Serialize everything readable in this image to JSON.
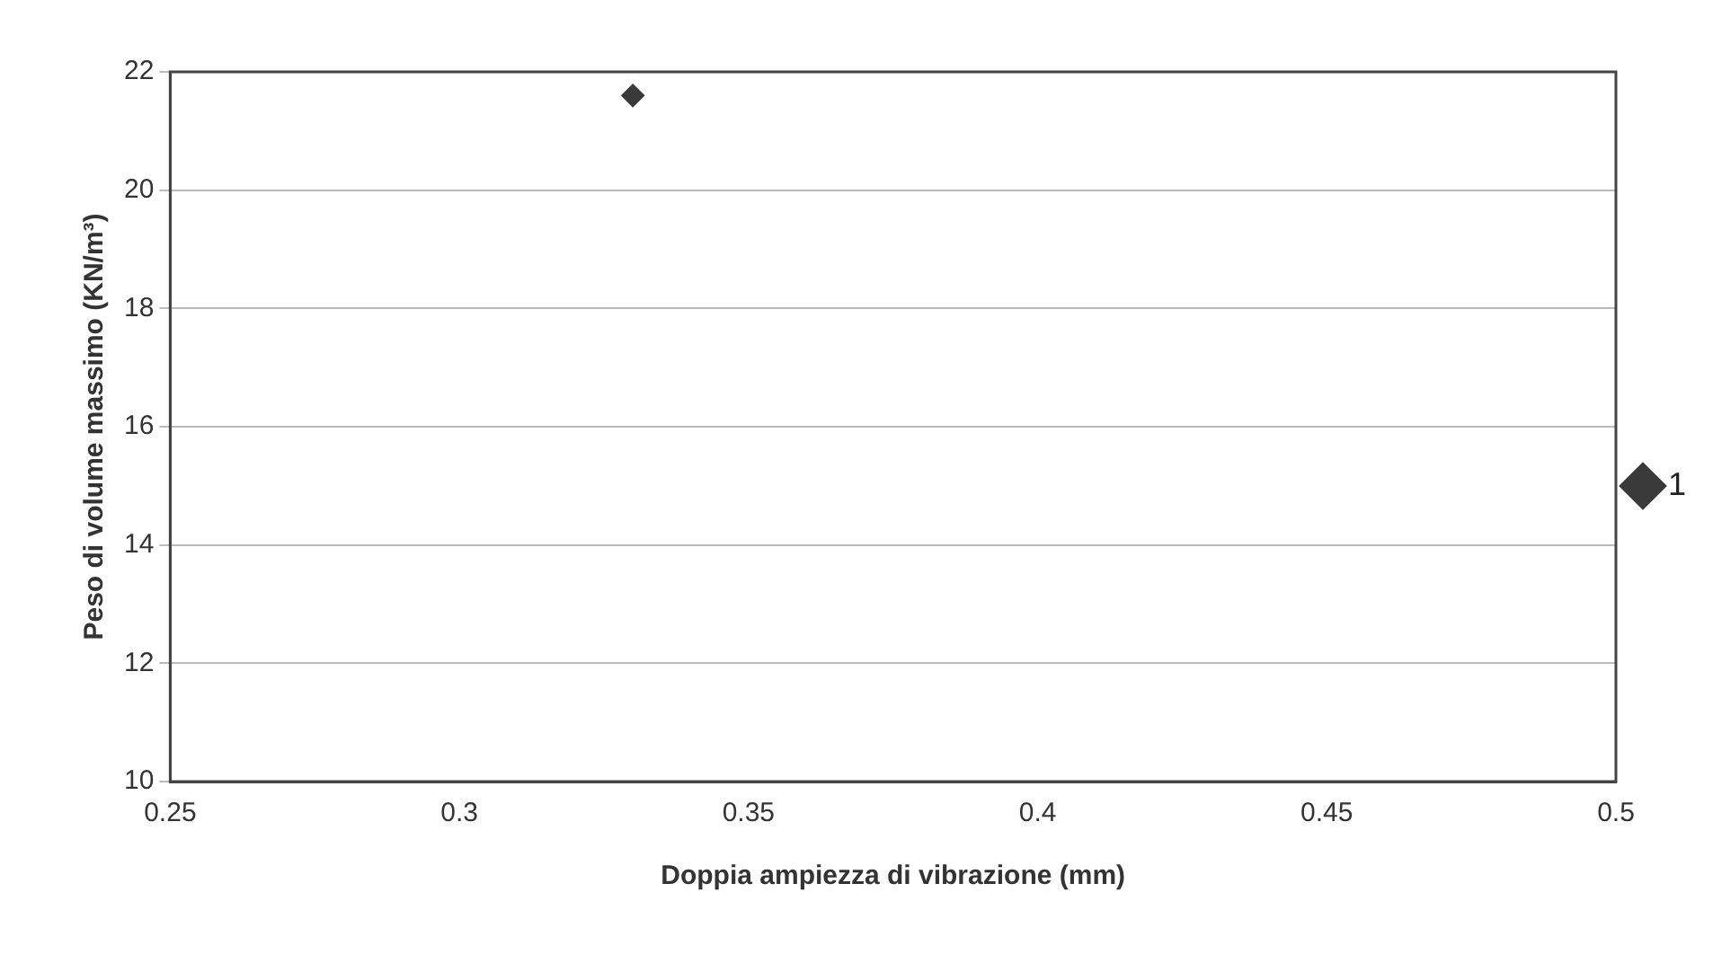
{
  "chart_data": {
    "type": "scatter",
    "xlabel": "Doppia ampiezza di vibrazione (mm)",
    "ylabel": "Peso di volume massimo (KN/m³)",
    "series": [
      {
        "name": "1",
        "color": "#3a3a3a",
        "x": [
          0.33
        ],
        "values": [
          21.6
        ]
      }
    ],
    "xlim": [
      0.25,
      0.5
    ],
    "xticks": [
      0.25,
      0.3,
      0.35,
      0.4,
      0.45,
      0.5
    ],
    "ylim": [
      10,
      22
    ],
    "yticks": [
      10,
      12,
      14,
      16,
      18,
      20,
      22
    ],
    "grid": "y",
    "legend": "right",
    "marker": "diamond"
  }
}
